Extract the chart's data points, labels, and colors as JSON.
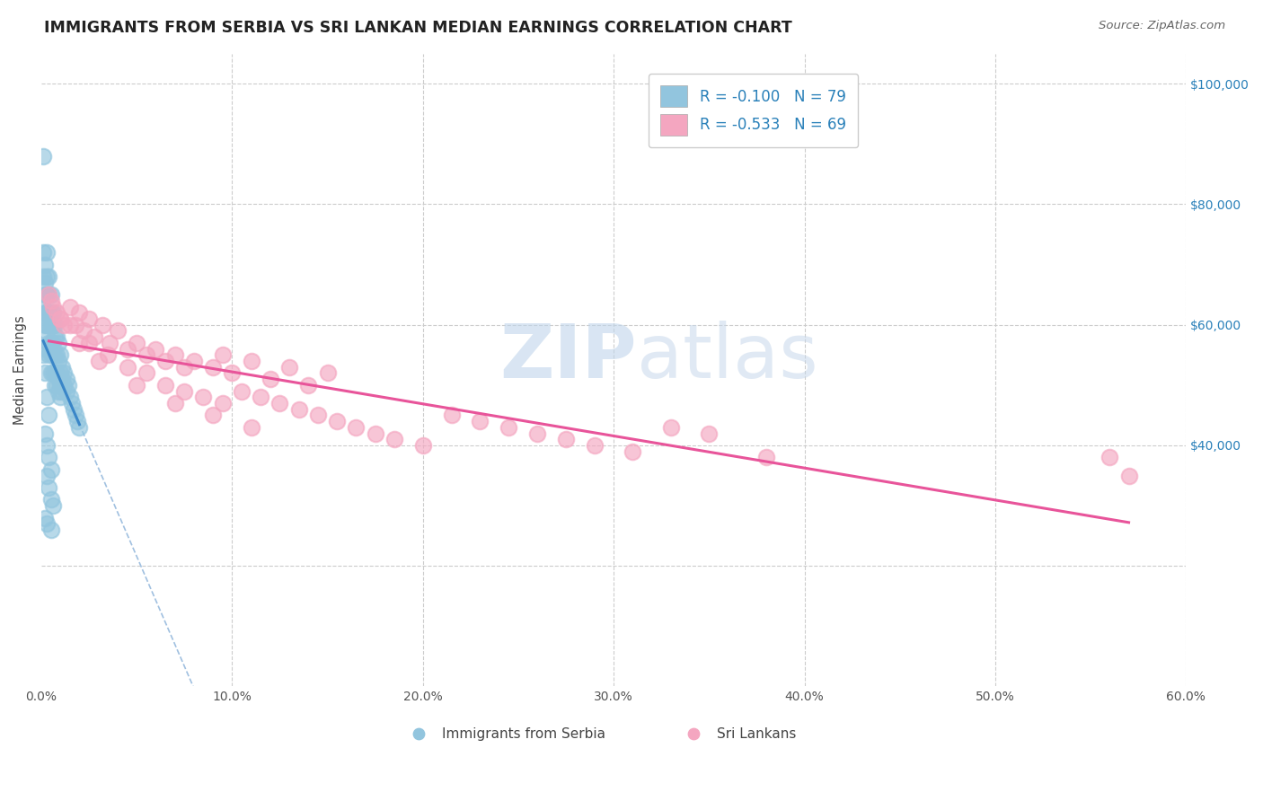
{
  "title": "IMMIGRANTS FROM SERBIA VS SRI LANKAN MEDIAN EARNINGS CORRELATION CHART",
  "source": "Source: ZipAtlas.com",
  "ylabel": "Median Earnings",
  "xlim": [
    0.0,
    0.6
  ],
  "ylim": [
    0,
    105000
  ],
  "xticks": [
    0.0,
    0.1,
    0.2,
    0.3,
    0.4,
    0.5,
    0.6
  ],
  "xticklabels": [
    "0.0%",
    "10.0%",
    "20.0%",
    "30.0%",
    "40.0%",
    "50.0%",
    "60.0%"
  ],
  "ytick_right": [
    20000,
    40000,
    60000,
    80000,
    100000
  ],
  "ytick_right_labels": [
    "",
    "$40,000",
    "$60,000",
    "$80,000",
    "$100,000"
  ],
  "serbia_R": -0.1,
  "serbia_N": 79,
  "srilanka_R": -0.533,
  "srilanka_N": 69,
  "serbia_color": "#92c5de",
  "srilanka_color": "#f4a6c0",
  "serbia_trend_color": "#3a86c8",
  "srilanka_trend_color": "#e8549a",
  "watermark": "ZIPatlas",
  "watermark_zip_color": "#b8cfe8",
  "watermark_atlas_color": "#b8cfe8",
  "background_color": "#ffffff",
  "grid_color": "#cccccc",
  "serbia_x": [
    0.001,
    0.001,
    0.001,
    0.001,
    0.002,
    0.002,
    0.002,
    0.002,
    0.002,
    0.003,
    0.003,
    0.003,
    0.003,
    0.003,
    0.003,
    0.003,
    0.004,
    0.004,
    0.004,
    0.004,
    0.004,
    0.004,
    0.005,
    0.005,
    0.005,
    0.005,
    0.005,
    0.005,
    0.006,
    0.006,
    0.006,
    0.006,
    0.006,
    0.007,
    0.007,
    0.007,
    0.007,
    0.007,
    0.008,
    0.008,
    0.008,
    0.008,
    0.009,
    0.009,
    0.009,
    0.009,
    0.01,
    0.01,
    0.01,
    0.01,
    0.011,
    0.011,
    0.011,
    0.012,
    0.012,
    0.013,
    0.013,
    0.014,
    0.015,
    0.016,
    0.017,
    0.018,
    0.019,
    0.02,
    0.001,
    0.002,
    0.003,
    0.004,
    0.002,
    0.003,
    0.004,
    0.005,
    0.003,
    0.004,
    0.005,
    0.006,
    0.002,
    0.003,
    0.005
  ],
  "serbia_y": [
    88000,
    72000,
    68000,
    63000,
    70000,
    67000,
    65000,
    62000,
    60000,
    72000,
    68000,
    65000,
    62000,
    60000,
    58000,
    56000,
    68000,
    65000,
    62000,
    60000,
    57000,
    55000,
    65000,
    62000,
    60000,
    57000,
    55000,
    52000,
    62000,
    60000,
    57000,
    55000,
    52000,
    60000,
    58000,
    55000,
    52000,
    50000,
    58000,
    55000,
    52000,
    50000,
    57000,
    54000,
    51000,
    49000,
    55000,
    52000,
    50000,
    48000,
    53000,
    51000,
    49000,
    52000,
    50000,
    51000,
    49000,
    50000,
    48000,
    47000,
    46000,
    45000,
    44000,
    43000,
    55000,
    52000,
    48000,
    45000,
    42000,
    40000,
    38000,
    36000,
    35000,
    33000,
    31000,
    30000,
    28000,
    27000,
    26000
  ],
  "srilanka_x": [
    0.004,
    0.006,
    0.008,
    0.01,
    0.012,
    0.015,
    0.018,
    0.02,
    0.022,
    0.025,
    0.028,
    0.032,
    0.036,
    0.04,
    0.045,
    0.05,
    0.055,
    0.06,
    0.065,
    0.07,
    0.075,
    0.08,
    0.09,
    0.095,
    0.1,
    0.11,
    0.12,
    0.13,
    0.14,
    0.15,
    0.005,
    0.015,
    0.025,
    0.035,
    0.045,
    0.055,
    0.065,
    0.075,
    0.085,
    0.095,
    0.105,
    0.115,
    0.125,
    0.135,
    0.145,
    0.155,
    0.165,
    0.175,
    0.185,
    0.2,
    0.215,
    0.23,
    0.245,
    0.26,
    0.275,
    0.29,
    0.31,
    0.33,
    0.35,
    0.38,
    0.01,
    0.02,
    0.03,
    0.05,
    0.07,
    0.09,
    0.11,
    0.56,
    0.57
  ],
  "srilanka_y": [
    65000,
    63000,
    62000,
    61000,
    60000,
    63000,
    60000,
    62000,
    59000,
    61000,
    58000,
    60000,
    57000,
    59000,
    56000,
    57000,
    55000,
    56000,
    54000,
    55000,
    53000,
    54000,
    53000,
    55000,
    52000,
    54000,
    51000,
    53000,
    50000,
    52000,
    64000,
    60000,
    57000,
    55000,
    53000,
    52000,
    50000,
    49000,
    48000,
    47000,
    49000,
    48000,
    47000,
    46000,
    45000,
    44000,
    43000,
    42000,
    41000,
    40000,
    45000,
    44000,
    43000,
    42000,
    41000,
    40000,
    39000,
    43000,
    42000,
    38000,
    61000,
    57000,
    54000,
    50000,
    47000,
    45000,
    43000,
    38000,
    35000
  ]
}
